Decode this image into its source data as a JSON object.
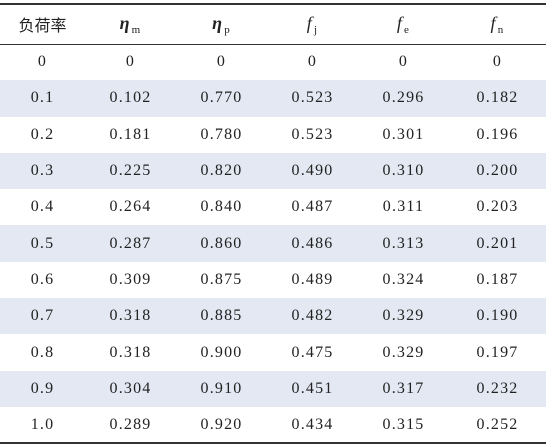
{
  "table": {
    "header": [
      {
        "main": "负荷率",
        "sub": ""
      },
      {
        "main": "η",
        "sub": "m"
      },
      {
        "main": "η",
        "sub": "p"
      },
      {
        "main": "f",
        "sub": "j"
      },
      {
        "main": "f",
        "sub": "e"
      },
      {
        "main": "f",
        "sub": "n"
      }
    ],
    "rows": [
      [
        "0",
        "0",
        "0",
        "0",
        "0",
        "0"
      ],
      [
        "0.1",
        "0.102",
        "0.770",
        "0.523",
        "0.296",
        "0.182"
      ],
      [
        "0.2",
        "0.181",
        "0.780",
        "0.523",
        "0.301",
        "0.196"
      ],
      [
        "0.3",
        "0.225",
        "0.820",
        "0.490",
        "0.310",
        "0.200"
      ],
      [
        "0.4",
        "0.264",
        "0.840",
        "0.487",
        "0.311",
        "0.203"
      ],
      [
        "0.5",
        "0.287",
        "0.860",
        "0.486",
        "0.313",
        "0.201"
      ],
      [
        "0.6",
        "0.309",
        "0.875",
        "0.489",
        "0.324",
        "0.187"
      ],
      [
        "0.7",
        "0.318",
        "0.885",
        "0.482",
        "0.329",
        "0.190"
      ],
      [
        "0.8",
        "0.318",
        "0.900",
        "0.475",
        "0.329",
        "0.197"
      ],
      [
        "0.9",
        "0.304",
        "0.910",
        "0.451",
        "0.317",
        "0.232"
      ],
      [
        "1.0",
        "0.289",
        "0.920",
        "0.434",
        "0.315",
        "0.252"
      ]
    ]
  },
  "colors": {
    "row_shade": "#e3e8f3",
    "rule": "#333333",
    "text": "#222222"
  }
}
